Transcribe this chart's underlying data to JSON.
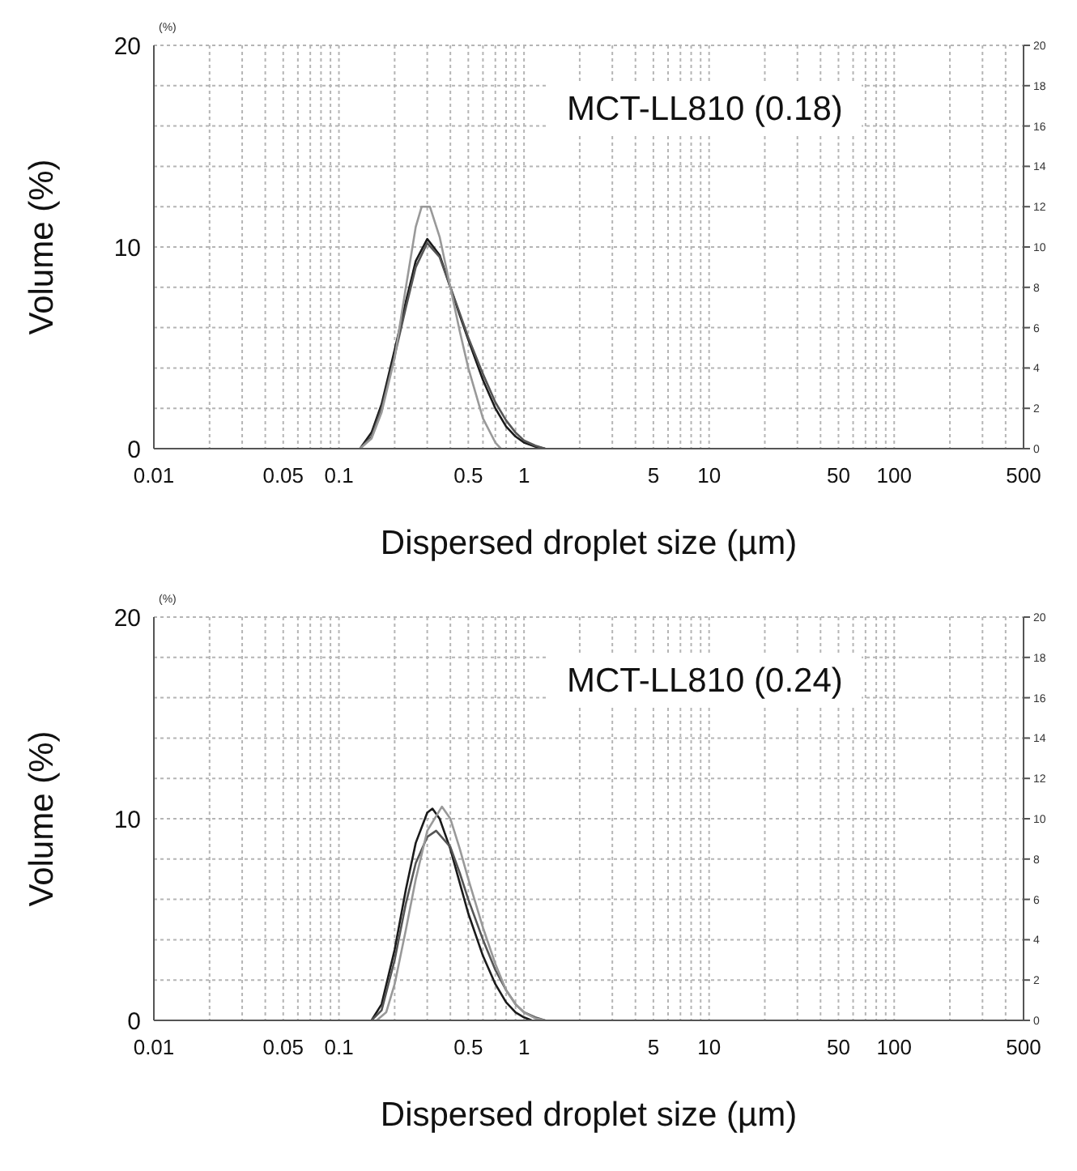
{
  "chart_data": [
    {
      "type": "line",
      "xlabel": "Dispersed droplet size (µm)",
      "ylabel": "Volume (%)",
      "annotations": [
        "(%)",
        "MCT-LL810 (0.18)"
      ],
      "log": "x",
      "grid": true,
      "xlim": [
        0.01,
        500
      ],
      "xticks": [
        0.01,
        {
          "value": 0.02,
          "label": null
        },
        {
          "value": 0.03,
          "label": null
        },
        {
          "value": 0.04,
          "label": null
        },
        0.05,
        {
          "value": 0.06,
          "label": null
        },
        {
          "value": 0.07,
          "label": null
        },
        {
          "value": 0.08,
          "label": null
        },
        {
          "value": 0.09,
          "label": null
        },
        0.1,
        {
          "value": 0.2,
          "label": null
        },
        {
          "value": 0.3,
          "label": null
        },
        {
          "value": 0.4,
          "label": null
        },
        0.5,
        {
          "value": 0.6,
          "label": null
        },
        {
          "value": 0.7,
          "label": null
        },
        {
          "value": 0.8,
          "label": null
        },
        {
          "value": 0.9,
          "label": null
        },
        1,
        {
          "value": 2,
          "label": null
        },
        {
          "value": 3,
          "label": null
        },
        {
          "value": 4,
          "label": null
        },
        5,
        {
          "value": 6,
          "label": null
        },
        {
          "value": 7,
          "label": null
        },
        {
          "value": 8,
          "label": null
        },
        {
          "value": 9,
          "label": null
        },
        10,
        {
          "value": 20,
          "label": null
        },
        {
          "value": 30,
          "label": null
        },
        {
          "value": 40,
          "label": null
        },
        50,
        {
          "value": 60,
          "label": null
        },
        {
          "value": 70,
          "label": null
        },
        {
          "value": 80,
          "label": null
        },
        {
          "value": 90,
          "label": null
        },
        100,
        {
          "value": 200,
          "label": null
        },
        {
          "value": 300,
          "label": null
        },
        {
          "value": 400,
          "label": null
        },
        500
      ],
      "ylim": [
        0,
        20
      ],
      "yticks": [
        0,
        {
          "value": 2,
          "label": null
        },
        {
          "value": 4,
          "label": null
        },
        {
          "value": 6,
          "label": null
        },
        {
          "value": 8,
          "label": null
        },
        10,
        {
          "value": 12,
          "label": null
        },
        {
          "value": 14,
          "label": null
        },
        {
          "value": 16,
          "label": null
        },
        {
          "value": 18,
          "label": null
        },
        20
      ],
      "y2lim": [
        0,
        20
      ],
      "y2ticks": [
        0,
        2,
        4,
        6,
        8,
        10,
        12,
        14,
        16,
        18,
        20
      ],
      "series": [
        {
          "color": "#1a1a1a",
          "x": [
            0.13,
            0.15,
            0.17,
            0.2,
            0.23,
            0.26,
            0.3,
            0.35,
            0.4,
            0.45,
            0.5,
            0.6,
            0.7,
            0.8,
            0.9,
            1.0,
            1.15,
            1.3
          ],
          "values": [
            0,
            0.8,
            2.2,
            4.9,
            7.3,
            9.3,
            10.4,
            9.6,
            8.0,
            6.6,
            5.4,
            3.4,
            2.0,
            1.1,
            0.6,
            0.3,
            0.1,
            0
          ]
        },
        {
          "color": "#555555",
          "x": [
            0.13,
            0.15,
            0.17,
            0.2,
            0.23,
            0.26,
            0.3,
            0.35,
            0.4,
            0.45,
            0.5,
            0.6,
            0.7,
            0.8,
            0.9,
            1.0,
            1.15,
            1.3
          ],
          "values": [
            0,
            0.6,
            2.0,
            4.6,
            7.0,
            9.0,
            10.2,
            9.5,
            8.0,
            6.7,
            5.5,
            3.7,
            2.3,
            1.4,
            0.8,
            0.4,
            0.15,
            0
          ]
        },
        {
          "color": "#999999",
          "x": [
            0.13,
            0.15,
            0.17,
            0.2,
            0.23,
            0.26,
            0.28,
            0.31,
            0.35,
            0.4,
            0.45,
            0.5,
            0.6,
            0.7,
            0.75
          ],
          "values": [
            0,
            0.5,
            1.8,
            4.5,
            8.0,
            11.0,
            12.0,
            12.0,
            10.5,
            8.0,
            5.8,
            4.0,
            1.5,
            0.3,
            0
          ]
        }
      ]
    },
    {
      "type": "line",
      "xlabel": "Dispersed droplet size (µm)",
      "ylabel": "Volume (%)",
      "annotations": [
        "(%)",
        "MCT-LL810 (0.24)"
      ],
      "log": "x",
      "grid": true,
      "xlim": [
        0.01,
        500
      ],
      "xticks": [
        0.01,
        {
          "value": 0.02,
          "label": null
        },
        {
          "value": 0.03,
          "label": null
        },
        {
          "value": 0.04,
          "label": null
        },
        0.05,
        {
          "value": 0.06,
          "label": null
        },
        {
          "value": 0.07,
          "label": null
        },
        {
          "value": 0.08,
          "label": null
        },
        {
          "value": 0.09,
          "label": null
        },
        0.1,
        {
          "value": 0.2,
          "label": null
        },
        {
          "value": 0.3,
          "label": null
        },
        {
          "value": 0.4,
          "label": null
        },
        0.5,
        {
          "value": 0.6,
          "label": null
        },
        {
          "value": 0.7,
          "label": null
        },
        {
          "value": 0.8,
          "label": null
        },
        {
          "value": 0.9,
          "label": null
        },
        1,
        {
          "value": 2,
          "label": null
        },
        {
          "value": 3,
          "label": null
        },
        {
          "value": 4,
          "label": null
        },
        5,
        {
          "value": 6,
          "label": null
        },
        {
          "value": 7,
          "label": null
        },
        {
          "value": 8,
          "label": null
        },
        {
          "value": 9,
          "label": null
        },
        10,
        {
          "value": 20,
          "label": null
        },
        {
          "value": 30,
          "label": null
        },
        {
          "value": 40,
          "label": null
        },
        50,
        {
          "value": 60,
          "label": null
        },
        {
          "value": 70,
          "label": null
        },
        {
          "value": 80,
          "label": null
        },
        {
          "value": 90,
          "label": null
        },
        100,
        {
          "value": 200,
          "label": null
        },
        {
          "value": 300,
          "label": null
        },
        {
          "value": 400,
          "label": null
        },
        500
      ],
      "ylim": [
        0,
        20
      ],
      "yticks": [
        0,
        {
          "value": 2,
          "label": null
        },
        {
          "value": 4,
          "label": null
        },
        {
          "value": 6,
          "label": null
        },
        {
          "value": 8,
          "label": null
        },
        10,
        {
          "value": 12,
          "label": null
        },
        {
          "value": 14,
          "label": null
        },
        {
          "value": 16,
          "label": null
        },
        {
          "value": 18,
          "label": null
        },
        20
      ],
      "y2lim": [
        0,
        20
      ],
      "y2ticks": [
        0,
        2,
        4,
        6,
        8,
        10,
        12,
        14,
        16,
        18,
        20
      ],
      "series": [
        {
          "color": "#1a1a1a",
          "x": [
            0.15,
            0.17,
            0.2,
            0.23,
            0.26,
            0.3,
            0.32,
            0.35,
            0.4,
            0.45,
            0.5,
            0.6,
            0.7,
            0.8,
            0.9,
            1.0,
            1.1
          ],
          "values": [
            0,
            0.8,
            3.5,
            6.5,
            8.8,
            10.3,
            10.5,
            10.0,
            8.5,
            6.8,
            5.3,
            3.2,
            1.8,
            0.9,
            0.4,
            0.15,
            0
          ]
        },
        {
          "color": "#555555",
          "x": [
            0.15,
            0.17,
            0.2,
            0.23,
            0.26,
            0.3,
            0.335,
            0.4,
            0.45,
            0.5,
            0.6,
            0.7,
            0.8,
            0.9,
            1.0,
            1.15,
            1.3
          ],
          "values": [
            0,
            0.5,
            3.0,
            5.8,
            7.8,
            9.1,
            9.4,
            8.6,
            7.3,
            6.0,
            4.0,
            2.5,
            1.5,
            0.8,
            0.4,
            0.15,
            0
          ]
        },
        {
          "color": "#999999",
          "x": [
            0.16,
            0.18,
            0.2,
            0.23,
            0.26,
            0.3,
            0.36,
            0.4,
            0.45,
            0.5,
            0.6,
            0.7,
            0.8,
            0.9,
            1.0,
            1.15,
            1.3
          ],
          "values": [
            0,
            0.4,
            1.8,
            4.5,
            7.0,
            9.4,
            10.6,
            10.0,
            8.5,
            7.0,
            4.6,
            2.8,
            1.5,
            0.8,
            0.4,
            0.1,
            0
          ]
        }
      ]
    }
  ]
}
